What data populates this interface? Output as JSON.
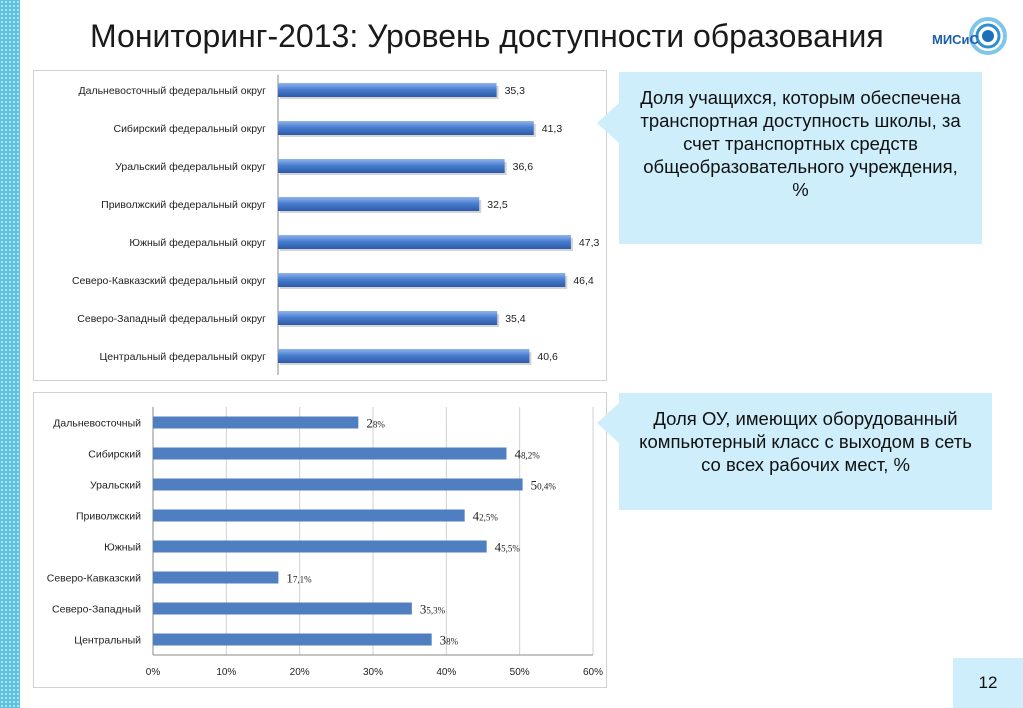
{
  "slide": {
    "title": "Мониторинг-2013: Уровень доступности образования",
    "logo_text": "МИСиС",
    "page_number": "12"
  },
  "callouts": [
    {
      "text": "Доля учащихся, которым обеспечена транспортная доступность школы, за счет транспортных средств общеобразовательного учреждения, %"
    },
    {
      "text": "Доля ОУ, имеющих оборудованный компьютерный класс с выходом в сеть со всех рабочих мест, %"
    }
  ],
  "colors": {
    "bar_gradient": "#4a7fd0",
    "bar_flat": "#4f7fc0",
    "callout_bg": "#cdeefa",
    "strip": "#5cc1e0"
  },
  "chart_data": [
    {
      "type": "bar",
      "orientation": "horizontal",
      "categories": [
        "Дальневосточный федеральный округ",
        "Сибирский федеральный округ",
        "Уральский федеральный округ",
        "Приволжский федеральный округ",
        "Южный федеральный округ",
        "Северо-Кавказский федеральный округ",
        "Северо-Западный федеральный округ",
        "Центральный федеральный округ"
      ],
      "values": [
        35.3,
        41.3,
        36.6,
        32.5,
        47.3,
        46.4,
        35.4,
        40.6
      ],
      "value_labels": [
        "35,3",
        "41,3",
        "36,6",
        "32,5",
        "47,3",
        "46,4",
        "35,4",
        "40,6"
      ],
      "xlim": [
        0,
        52
      ],
      "show_x_axis_ticks": false,
      "grid": false,
      "title": "",
      "xlabel": "",
      "ylabel": ""
    },
    {
      "type": "bar",
      "orientation": "horizontal",
      "categories": [
        "Дальневосточный",
        "Сибирский",
        "Уральский",
        "Приволжский",
        "Южный",
        "Северо-Кавказский",
        "Северо-Западный",
        "Центральный"
      ],
      "values": [
        28,
        48.2,
        50.4,
        42.5,
        45.5,
        17.1,
        35.3,
        38
      ],
      "value_labels": [
        {
          "big": "2",
          "small": "8%"
        },
        {
          "big": "4",
          "small": "8,2%"
        },
        {
          "big": "5",
          "small": "0,4%"
        },
        {
          "big": "4",
          "small": "2,5%"
        },
        {
          "big": "4",
          "small": "5,5%"
        },
        {
          "big": "1",
          "small": "7,1%"
        },
        {
          "big": "3",
          "small": "5,3%"
        },
        {
          "big": "3",
          "small": "8%"
        }
      ],
      "xlim": [
        0,
        60
      ],
      "x_ticks": [
        "0%",
        "10%",
        "20%",
        "30%",
        "40%",
        "50%",
        "60%"
      ],
      "grid": true,
      "title": "",
      "xlabel": "",
      "ylabel": ""
    }
  ]
}
